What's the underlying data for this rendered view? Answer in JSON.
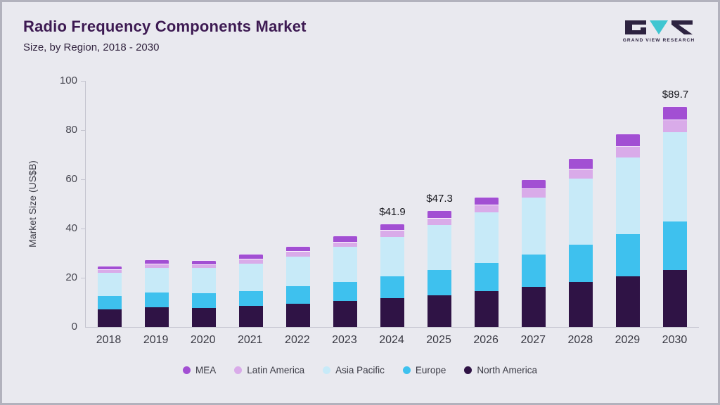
{
  "header": {
    "title": "Radio Frequency Components Market",
    "subtitle": "Size, by Region, 2018 - 2030"
  },
  "logo": {
    "text": "GRAND VIEW RESEARCH"
  },
  "chart_data": {
    "type": "bar",
    "stacked": true,
    "title": "Radio Frequency Components Market Size, by Region, 2018 - 2030",
    "ylabel": "Market Size (US$B)",
    "ylim": [
      0,
      100
    ],
    "yticks": [
      0,
      20,
      40,
      60,
      80,
      100
    ],
    "grid": false,
    "legend_position": "bottom",
    "categories": [
      "2018",
      "2019",
      "2020",
      "2021",
      "2022",
      "2023",
      "2024",
      "2025",
      "2026",
      "2027",
      "2028",
      "2029",
      "2030"
    ],
    "series": [
      {
        "name": "North America",
        "color": "#2f1345",
        "values": [
          7.2,
          8.0,
          7.8,
          8.5,
          9.3,
          10.5,
          11.7,
          13.0,
          14.5,
          16.3,
          18.3,
          20.5,
          23.2
        ]
      },
      {
        "name": "Europe",
        "color": "#3ec1ee",
        "values": [
          5.4,
          6.0,
          5.9,
          6.2,
          7.2,
          7.8,
          8.8,
          10.2,
          11.5,
          13.0,
          15.0,
          17.3,
          19.8
        ]
      },
      {
        "name": "Asia Pacific",
        "color": "#c7eaf8",
        "values": [
          9.4,
          10.0,
          10.2,
          11.1,
          12.2,
          14.2,
          16.2,
          18.1,
          20.5,
          23.4,
          27.0,
          31.0,
          36.2
        ]
      },
      {
        "name": "Latin America",
        "color": "#d9abe9",
        "values": [
          1.5,
          1.7,
          1.5,
          1.8,
          2.1,
          2.2,
          2.6,
          3.0,
          3.2,
          3.6,
          4.0,
          4.7,
          5.2
        ]
      },
      {
        "name": "MEA",
        "color": "#a24fd3",
        "values": [
          1.5,
          1.8,
          1.7,
          2.0,
          2.2,
          2.4,
          2.6,
          3.0,
          3.3,
          3.8,
          4.2,
          5.0,
          5.3
        ]
      }
    ],
    "total_labels": [
      "",
      "",
      "",
      "",
      "",
      "",
      "$41.9",
      "$47.3",
      "",
      "",
      "",
      "",
      "$89.7"
    ],
    "legend": [
      "MEA",
      "Latin America",
      "Asia Pacific",
      "Europe",
      "North America"
    ]
  }
}
